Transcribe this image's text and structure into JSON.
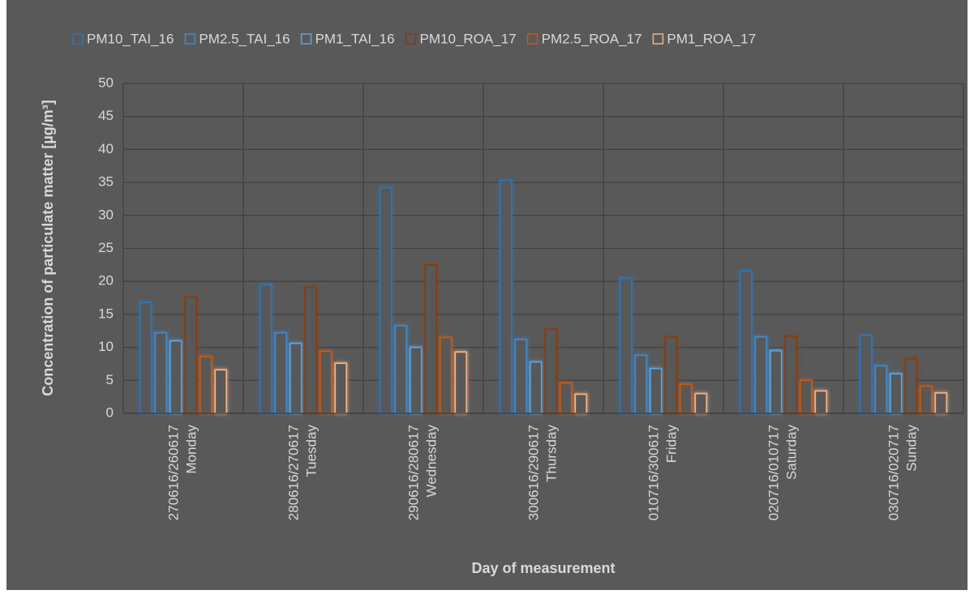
{
  "chart_data": {
    "type": "bar",
    "x_label": "Day of measurement",
    "y_label": "Concentration of particulate matter [µg/m³]",
    "categories": [
      [
        "270616/260617",
        "Monday"
      ],
      [
        "280616/270617",
        "Tuesday"
      ],
      [
        "290616/280617",
        "Wednesday"
      ],
      [
        "300616/290617",
        "Thursday"
      ],
      [
        "010716/300617",
        "Friday"
      ],
      [
        "020716/010717",
        "Saturday"
      ],
      [
        "030716/020717",
        "Sunday"
      ]
    ],
    "series": [
      {
        "name": "PM10_TAI_16",
        "color": "#2e75b6",
        "values": [
          16.8,
          19.5,
          34.2,
          35.3,
          20.5,
          21.6,
          11.8
        ]
      },
      {
        "name": "PM2.5_TAI_16",
        "color": "#3d8ad0",
        "values": [
          12.2,
          12.2,
          13.3,
          11.2,
          8.8,
          11.6,
          7.2
        ]
      },
      {
        "name": "PM1_TAI_16",
        "color": "#5aa5e6",
        "values": [
          11,
          10.6,
          10,
          7.8,
          6.8,
          9.5,
          6
        ]
      },
      {
        "name": "PM10_ROA_17",
        "color": "#843c0c",
        "values": [
          17.6,
          19.1,
          22.5,
          12.8,
          11.6,
          11.7,
          8.3
        ]
      },
      {
        "name": "PM2.5_ROA_17",
        "color": "#c55a11",
        "values": [
          8.6,
          9.4,
          11.5,
          4.6,
          4.4,
          5,
          4.1
        ]
      },
      {
        "name": "PM1_ROA_17",
        "color": "#f4b183",
        "values": [
          6.6,
          7.6,
          9.3,
          2.9,
          3,
          3.4,
          3.1
        ]
      }
    ],
    "ylim": [
      0,
      50
    ],
    "yticks": [
      0,
      5,
      10,
      15,
      20,
      25,
      30,
      35,
      40,
      45,
      50
    ],
    "grid": true,
    "legend": "top"
  }
}
